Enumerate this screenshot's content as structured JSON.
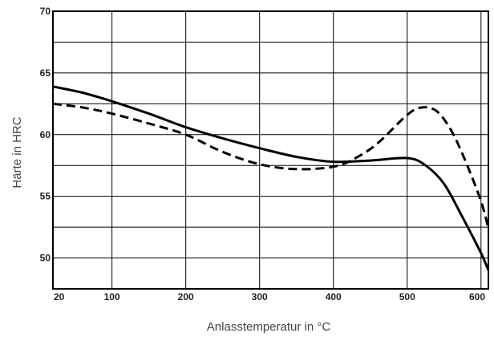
{
  "chart_data": {
    "type": "line",
    "xlabel": "Anlasstemperatur in °C",
    "ylabel": "Härte in HRC",
    "xlim": [
      20,
      610
    ],
    "ylim": [
      47.5,
      70
    ],
    "x_ticks": [
      20,
      100,
      200,
      300,
      400,
      500,
      600
    ],
    "y_ticks": [
      50,
      55,
      60,
      65,
      70
    ],
    "grid": true,
    "series": [
      {
        "style": "solid",
        "color": "#000000",
        "x": [
          20,
          60,
          100,
          150,
          200,
          250,
          300,
          350,
          400,
          450,
          500,
          525,
          550,
          575,
          600,
          610
        ],
        "y": [
          63.9,
          63.4,
          62.7,
          61.7,
          60.6,
          59.7,
          58.9,
          58.2,
          57.8,
          57.9,
          58.1,
          57.5,
          56.0,
          53.3,
          50.4,
          49.0
        ]
      },
      {
        "style": "dashed",
        "color": "#000000",
        "x": [
          20,
          60,
          100,
          150,
          200,
          250,
          300,
          350,
          400,
          430,
          460,
          500,
          520,
          540,
          560,
          580,
          600,
          610
        ],
        "y": [
          62.5,
          62.2,
          61.7,
          60.9,
          60.0,
          58.6,
          57.6,
          57.2,
          57.4,
          58.1,
          59.3,
          61.6,
          62.2,
          61.9,
          60.3,
          57.7,
          54.6,
          52.4
        ]
      }
    ]
  }
}
